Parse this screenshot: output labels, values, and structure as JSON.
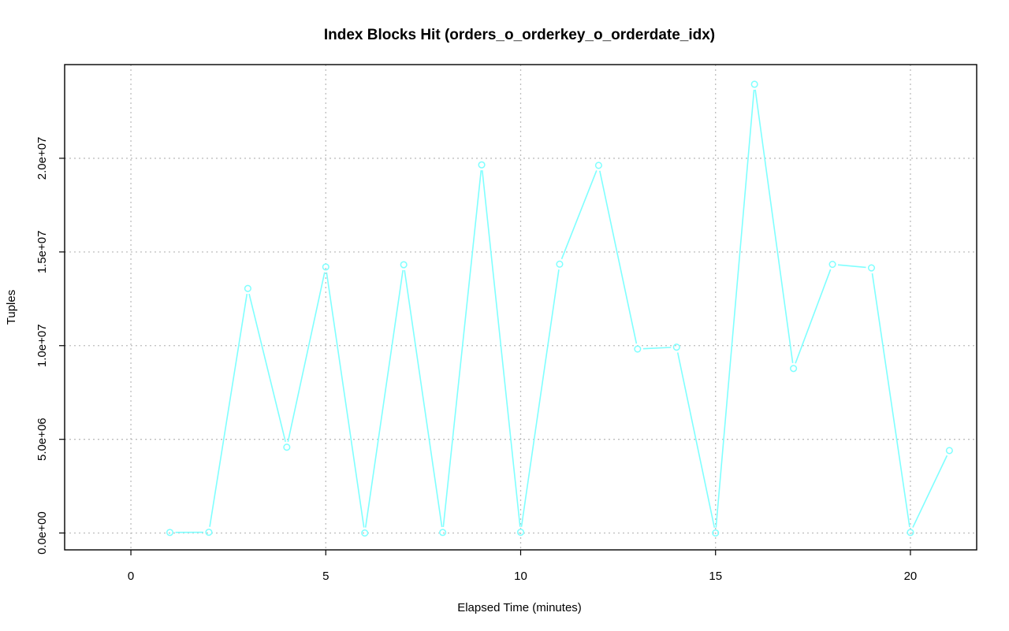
{
  "chart_data": {
    "type": "line",
    "title": "Index Blocks Hit (orders_o_orderkey_o_orderdate_idx)",
    "xlabel": "Elapsed Time (minutes)",
    "ylabel": "Tuples",
    "xlim": [
      -1.7,
      21.7
    ],
    "ylim": [
      -900000,
      25000000
    ],
    "x_ticks": [
      0,
      5,
      10,
      15,
      20
    ],
    "x_tick_labels": [
      "0",
      "5",
      "10",
      "15",
      "20"
    ],
    "y_ticks": [
      0,
      5000000,
      10000000,
      15000000,
      20000000
    ],
    "y_tick_labels": [
      "0.0e+00",
      "5.0e+06",
      "1.0e+07",
      "1.5e+07",
      "2.0e+07"
    ],
    "grid": true,
    "color": "#7fffff",
    "series": [
      {
        "x": [
          1,
          2,
          3,
          4,
          5,
          6,
          7,
          8,
          9,
          10,
          11,
          12,
          13,
          14,
          15,
          16,
          17,
          18,
          19,
          20,
          21
        ],
        "values": [
          30000,
          40000,
          13050000,
          4580000,
          14200000,
          0,
          14320000,
          30000,
          19650000,
          40000,
          14350000,
          19620000,
          9820000,
          9920000,
          0,
          23950000,
          8780000,
          14340000,
          14150000,
          30000,
          4400000
        ]
      }
    ]
  }
}
